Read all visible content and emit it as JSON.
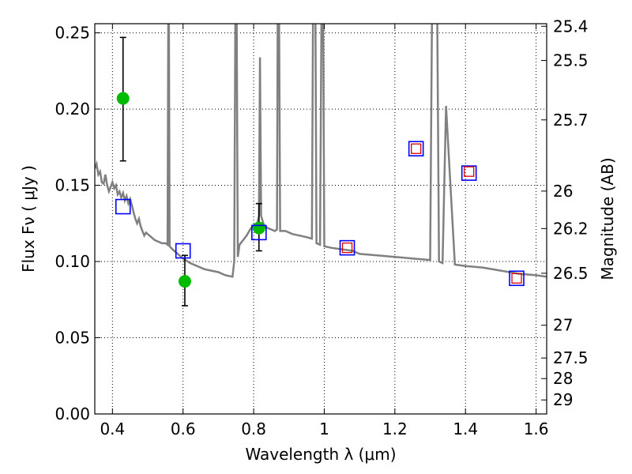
{
  "chart_data": {
    "type": "scatter",
    "title": "",
    "xlabel": "Wavelength  λ (μm)",
    "ylabel": "Flux  Fν  ( μJy )",
    "ylabel_right": "Magnitude (AB)",
    "xlim": [
      0.35,
      1.63
    ],
    "ylim": [
      0.0,
      0.256
    ],
    "grid": true,
    "xticks": [
      0.4,
      0.6,
      0.8,
      1.0,
      1.2,
      1.4,
      1.6
    ],
    "xtick_labels": [
      "0.4",
      "0.6",
      "0.8",
      "1",
      "1.2",
      "1.4",
      "1.6"
    ],
    "yticks": [
      0.0,
      0.05,
      0.1,
      0.15,
      0.2,
      0.25
    ],
    "ytick_labels": [
      "0.00",
      "0.05",
      "0.10",
      "0.15",
      "0.20",
      "0.25"
    ],
    "right_ticks": [
      {
        "label": "25.4",
        "flux": 0.2543
      },
      {
        "label": "25.5",
        "flux": 0.2319
      },
      {
        "label": "25.7",
        "flux": 0.1929
      },
      {
        "label": "26",
        "flux": 0.1462
      },
      {
        "label": "26.2",
        "flux": 0.1216
      },
      {
        "label": "26.5",
        "flux": 0.0923
      },
      {
        "label": "27",
        "flux": 0.0582
      },
      {
        "label": "27.5",
        "flux": 0.0367
      },
      {
        "label": "28",
        "flux": 0.0232
      },
      {
        "label": "29",
        "flux": 0.0092
      }
    ],
    "colors": {
      "model": "#808080",
      "observed": "#00bb00",
      "model_photometry": "#0000ff",
      "secondary_photometry": "#dd0000",
      "errorbar": "#000000"
    },
    "series": [
      {
        "kind": "line",
        "points": [
          [
            0.35,
            0.161
          ],
          [
            0.355,
            0.164
          ],
          [
            0.36,
            0.157
          ],
          [
            0.365,
            0.159
          ],
          [
            0.37,
            0.152
          ],
          [
            0.375,
            0.151
          ],
          [
            0.38,
            0.157
          ],
          [
            0.385,
            0.15
          ],
          [
            0.39,
            0.146
          ],
          [
            0.395,
            0.149
          ],
          [
            0.4,
            0.152
          ],
          [
            0.405,
            0.148
          ],
          [
            0.41,
            0.15
          ],
          [
            0.415,
            0.144
          ],
          [
            0.42,
            0.146
          ],
          [
            0.425,
            0.142
          ],
          [
            0.43,
            0.145
          ],
          [
            0.435,
            0.14
          ],
          [
            0.44,
            0.143
          ],
          [
            0.445,
            0.138
          ],
          [
            0.45,
            0.141
          ],
          [
            0.455,
            0.137
          ],
          [
            0.46,
            0.132
          ],
          [
            0.465,
            0.128
          ],
          [
            0.47,
            0.125
          ],
          [
            0.475,
            0.128
          ],
          [
            0.48,
            0.123
          ],
          [
            0.485,
            0.12
          ],
          [
            0.49,
            0.117
          ],
          [
            0.495,
            0.119
          ],
          [
            0.5,
            0.118
          ],
          [
            0.51,
            0.116
          ],
          [
            0.52,
            0.114
          ],
          [
            0.53,
            0.113
          ],
          [
            0.54,
            0.112
          ],
          [
            0.55,
            0.112
          ],
          [
            0.556,
            0.111
          ],
          [
            0.558,
            0.26
          ],
          [
            0.56,
            0.26
          ],
          [
            0.562,
            0.11
          ],
          [
            0.57,
            0.108
          ],
          [
            0.58,
            0.106
          ],
          [
            0.59,
            0.104
          ],
          [
            0.6,
            0.102
          ],
          [
            0.62,
            0.099
          ],
          [
            0.64,
            0.097
          ],
          [
            0.66,
            0.095
          ],
          [
            0.68,
            0.094
          ],
          [
            0.7,
            0.093
          ],
          [
            0.72,
            0.091
          ],
          [
            0.74,
            0.09
          ],
          [
            0.745,
            0.1
          ],
          [
            0.748,
            0.26
          ],
          [
            0.752,
            0.26
          ],
          [
            0.755,
            0.103
          ],
          [
            0.76,
            0.111
          ],
          [
            0.77,
            0.114
          ],
          [
            0.78,
            0.117
          ],
          [
            0.79,
            0.121
          ],
          [
            0.8,
            0.124
          ],
          [
            0.81,
            0.125
          ],
          [
            0.815,
            0.13
          ],
          [
            0.818,
            0.234
          ],
          [
            0.821,
            0.13
          ],
          [
            0.83,
            0.123
          ],
          [
            0.84,
            0.122
          ],
          [
            0.85,
            0.121
          ],
          [
            0.86,
            0.12
          ],
          [
            0.866,
            0.121
          ],
          [
            0.868,
            0.26
          ],
          [
            0.872,
            0.26
          ],
          [
            0.875,
            0.12
          ],
          [
            0.89,
            0.12
          ],
          [
            0.91,
            0.118
          ],
          [
            0.93,
            0.117
          ],
          [
            0.95,
            0.116
          ],
          [
            0.965,
            0.115
          ],
          [
            0.968,
            0.26
          ],
          [
            0.975,
            0.26
          ],
          [
            0.978,
            0.112
          ],
          [
            0.988,
            0.111
          ],
          [
            0.992,
            0.26
          ],
          [
            0.997,
            0.26
          ],
          [
            1.0,
            0.11
          ],
          [
            1.02,
            0.109
          ],
          [
            1.05,
            0.108
          ],
          [
            1.08,
            0.107
          ],
          [
            1.1,
            0.105
          ],
          [
            1.15,
            0.104
          ],
          [
            1.2,
            0.103
          ],
          [
            1.25,
            0.102
          ],
          [
            1.3,
            0.101
          ],
          [
            1.305,
            0.26
          ],
          [
            1.32,
            0.26
          ],
          [
            1.325,
            0.1
          ],
          [
            1.335,
            0.099
          ],
          [
            1.345,
            0.202
          ],
          [
            1.355,
            0.16
          ],
          [
            1.37,
            0.098
          ],
          [
            1.4,
            0.097
          ],
          [
            1.45,
            0.096
          ],
          [
            1.5,
            0.094
          ],
          [
            1.55,
            0.092
          ],
          [
            1.6,
            0.091
          ],
          [
            1.63,
            0.09
          ]
        ]
      },
      {
        "kind": "points",
        "x": [
          0.43,
          0.605,
          0.815
        ],
        "y": [
          0.207,
          0.087,
          0.122
        ],
        "yerr_low": [
          0.041,
          0.016,
          0.015
        ],
        "yerr_high": [
          0.04,
          0.017,
          0.016
        ]
      },
      {
        "kind": "points",
        "x": [
          0.43,
          0.6,
          0.815,
          1.065,
          1.26,
          1.41,
          1.545
        ],
        "y": [
          0.136,
          0.107,
          0.119,
          0.109,
          0.174,
          0.158,
          0.089
        ]
      },
      {
        "kind": "points",
        "x": [
          1.065,
          1.26,
          1.41,
          1.545
        ],
        "y": [
          0.109,
          0.174,
          0.159,
          0.089
        ]
      }
    ]
  }
}
